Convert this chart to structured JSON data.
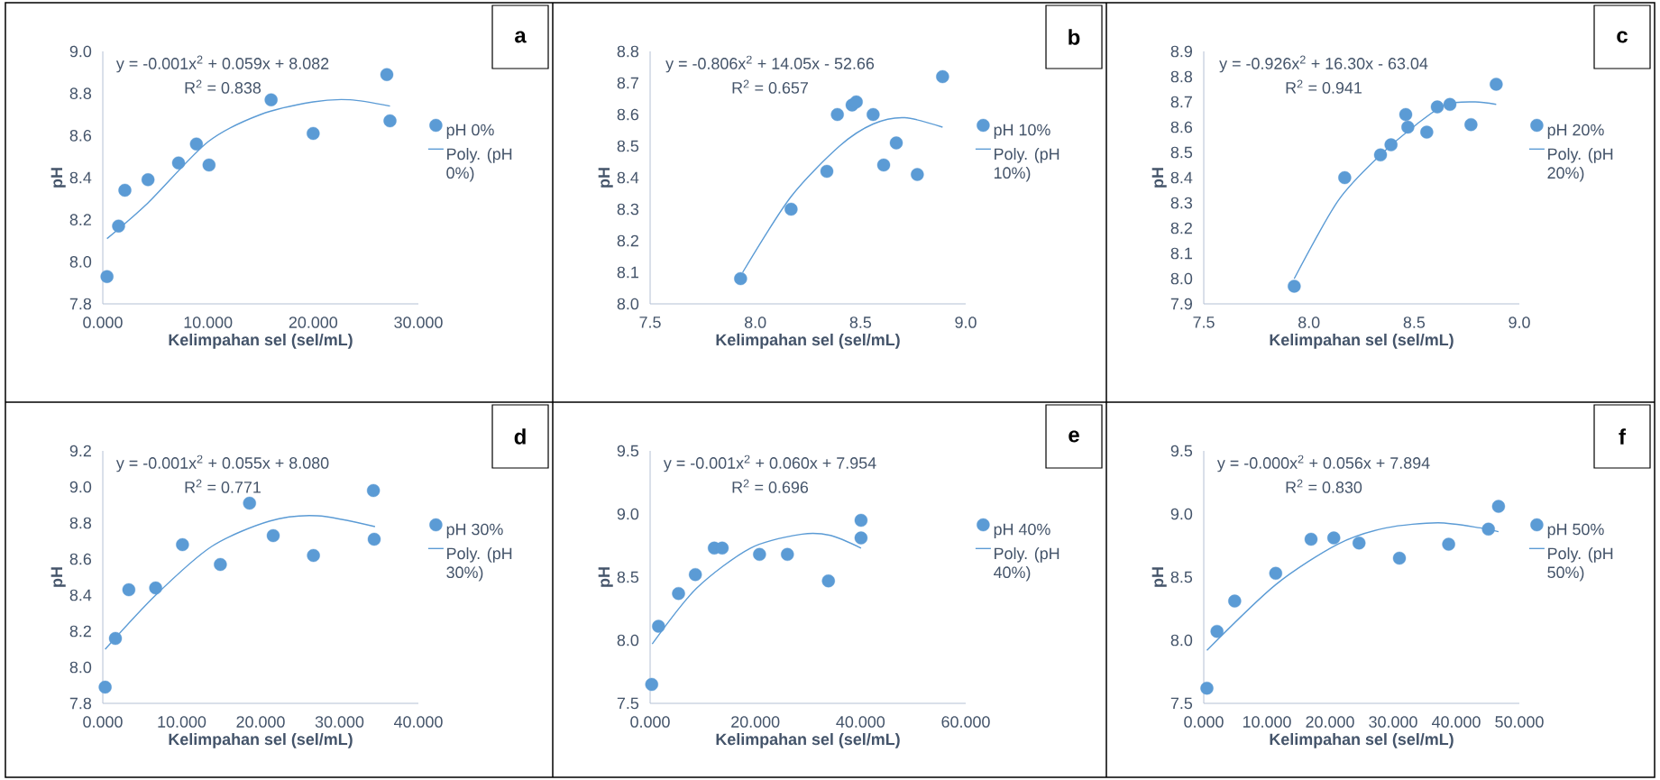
{
  "chart_data": [
    {
      "type": "scatter",
      "xlabel": "Kelimpahan sel (sel/mL)",
      "ylabel": "pH",
      "annotations": [
        "a",
        "y = -0.001x$^{2}$ + 0.059x + 8.082",
        "R$^{2}$ = 0.838"
      ],
      "xlim": [
        0,
        30
      ],
      "ylim": [
        7.8,
        9.0
      ],
      "xticks": [
        {
          "value": 0,
          "label": "0.000"
        },
        {
          "value": 10,
          "label": "10.000"
        },
        {
          "value": 20,
          "label": "20.000"
        },
        {
          "value": 30,
          "label": "30.000"
        }
      ],
      "yticks": [
        {
          "value": 7.8,
          "label": "7.8"
        },
        {
          "value": 8.0,
          "label": "8.0"
        },
        {
          "value": 8.2,
          "label": "8.2"
        },
        {
          "value": 8.4,
          "label": "8.4"
        },
        {
          "value": 8.6,
          "label": "8.6"
        },
        {
          "value": 8.8,
          "label": "8.8"
        },
        {
          "value": 9.0,
          "label": "9.0"
        }
      ],
      "legend": "right",
      "marker": "circle",
      "series": [
        {
          "name": "pH 0%",
          "color": "#5b9bd5",
          "x": [
            0.4,
            1.5,
            2.1,
            4.3,
            7.2,
            8.9,
            10.1,
            16.0,
            20.0,
            27.0,
            27.3
          ],
          "values": [
            7.93,
            8.17,
            8.34,
            8.39,
            8.47,
            8.56,
            8.46,
            8.77,
            8.61,
            8.89,
            8.67
          ]
        },
        {
          "name": "Poly. (pH 0%)",
          "type": "line",
          "marker": "none",
          "line_style": "solid",
          "color": "#5b9bd5",
          "x": [
            0.4,
            4.3,
            10,
            15,
            20,
            23.5,
            27.3
          ],
          "values": [
            8.11,
            8.28,
            8.57,
            8.7,
            8.76,
            8.77,
            8.74
          ]
        }
      ]
    },
    {
      "type": "scatter",
      "xlabel": "Kelimpahan sel (sel/mL)",
      "ylabel": "pH",
      "annotations": [
        "b",
        "y = -0.806x$^{2}$ + 14.05x - 52.66",
        "R$^{2}$ = 0.657"
      ],
      "xlim": [
        7.5,
        9.0
      ],
      "ylim": [
        8.0,
        8.8
      ],
      "xticks": [
        {
          "value": 7.5,
          "label": "7.5"
        },
        {
          "value": 8.0,
          "label": "8.0"
        },
        {
          "value": 8.5,
          "label": "8.5"
        },
        {
          "value": 9.0,
          "label": "9.0"
        }
      ],
      "yticks": [
        {
          "value": 8.0,
          "label": "8.0"
        },
        {
          "value": 8.1,
          "label": "8.1"
        },
        {
          "value": 8.2,
          "label": "8.2"
        },
        {
          "value": 8.3,
          "label": "8.3"
        },
        {
          "value": 8.4,
          "label": "8.4"
        },
        {
          "value": 8.5,
          "label": "8.5"
        },
        {
          "value": 8.6,
          "label": "8.6"
        },
        {
          "value": 8.7,
          "label": "8.7"
        },
        {
          "value": 8.8,
          "label": "8.8"
        }
      ],
      "legend": "right",
      "marker": "circle",
      "series": [
        {
          "name": "pH 10%",
          "color": "#5b9bd5",
          "x": [
            7.93,
            8.17,
            8.34,
            8.39,
            8.46,
            8.48,
            8.56,
            8.61,
            8.67,
            8.77,
            8.89
          ],
          "values": [
            8.08,
            8.3,
            8.42,
            8.6,
            8.63,
            8.64,
            8.6,
            8.44,
            8.51,
            8.41,
            8.72
          ]
        },
        {
          "name": "Poly. (pH 10%)",
          "type": "line",
          "marker": "none",
          "line_style": "solid",
          "color": "#5b9bd5",
          "x": [
            7.94,
            8.17,
            8.4,
            8.56,
            8.71,
            8.89
          ],
          "values": [
            8.1,
            8.34,
            8.5,
            8.57,
            8.59,
            8.56
          ]
        }
      ]
    },
    {
      "type": "scatter",
      "xlabel": "Kelimpahan sel (sel/mL)",
      "ylabel": "pH",
      "annotations": [
        "c",
        "y = -0.926x$^{2}$ + 16.30x - 63.04",
        "R$^{2}$ = 0.941"
      ],
      "xlim": [
        7.5,
        9.0
      ],
      "ylim": [
        7.9,
        8.9
      ],
      "xticks": [
        {
          "value": 7.5,
          "label": "7.5"
        },
        {
          "value": 8.0,
          "label": "8.0"
        },
        {
          "value": 8.5,
          "label": "8.5"
        },
        {
          "value": 9.0,
          "label": "9.0"
        }
      ],
      "yticks": [
        {
          "value": 7.9,
          "label": "7.9"
        },
        {
          "value": 8.0,
          "label": "8.0"
        },
        {
          "value": 8.1,
          "label": "8.1"
        },
        {
          "value": 8.2,
          "label": "8.2"
        },
        {
          "value": 8.3,
          "label": "8.3"
        },
        {
          "value": 8.4,
          "label": "8.4"
        },
        {
          "value": 8.5,
          "label": "8.5"
        },
        {
          "value": 8.6,
          "label": "8.6"
        },
        {
          "value": 8.7,
          "label": "8.7"
        },
        {
          "value": 8.8,
          "label": "8.8"
        },
        {
          "value": 8.9,
          "label": "8.9"
        }
      ],
      "legend": "right",
      "marker": "circle",
      "series": [
        {
          "name": "pH 20%",
          "color": "#5b9bd5",
          "x": [
            7.93,
            8.17,
            8.34,
            8.39,
            8.46,
            8.47,
            8.56,
            8.61,
            8.67,
            8.77,
            8.89
          ],
          "values": [
            7.97,
            8.4,
            8.49,
            8.53,
            8.65,
            8.6,
            8.58,
            8.68,
            8.69,
            8.61,
            8.77
          ]
        },
        {
          "name": "Poly. (pH 20%)",
          "type": "line",
          "marker": "none",
          "line_style": "solid",
          "color": "#5b9bd5",
          "x": [
            7.93,
            8.14,
            8.34,
            8.51,
            8.65,
            8.79,
            8.89
          ],
          "values": [
            8.0,
            8.31,
            8.49,
            8.61,
            8.69,
            8.7,
            8.69
          ]
        }
      ]
    },
    {
      "type": "scatter",
      "xlabel": "Kelimpahan sel (sel/mL)",
      "ylabel": "pH",
      "annotations": [
        "d",
        "y = -0.001x$^{2}$ + 0.055x + 8.080",
        "R$^{2}$ = 0.771"
      ],
      "xlim": [
        0,
        40
      ],
      "ylim": [
        7.8,
        9.2
      ],
      "xticks": [
        {
          "value": 0,
          "label": "0.000"
        },
        {
          "value": 10,
          "label": "10.000"
        },
        {
          "value": 20,
          "label": "20.000"
        },
        {
          "value": 30,
          "label": "30.000"
        },
        {
          "value": 40,
          "label": "40.000"
        }
      ],
      "yticks": [
        {
          "value": 7.8,
          "label": "7.8"
        },
        {
          "value": 8.0,
          "label": "8.0"
        },
        {
          "value": 8.2,
          "label": "8.2"
        },
        {
          "value": 8.4,
          "label": "8.4"
        },
        {
          "value": 8.6,
          "label": "8.6"
        },
        {
          "value": 8.8,
          "label": "8.8"
        },
        {
          "value": 9.0,
          "label": "9.0"
        },
        {
          "value": 9.2,
          "label": "9.2"
        }
      ],
      "legend": "right",
      "marker": "circle",
      "series": [
        {
          "name": "pH 30%",
          "color": "#5b9bd5",
          "x": [
            0.3,
            1.6,
            3.3,
            6.7,
            10.1,
            14.9,
            18.6,
            21.6,
            26.7,
            34.3,
            34.4
          ],
          "values": [
            7.89,
            8.16,
            8.43,
            8.44,
            8.68,
            8.57,
            8.91,
            8.73,
            8.62,
            8.98,
            8.71
          ]
        },
        {
          "name": "Poly. (pH 30%)",
          "type": "line",
          "marker": "none",
          "line_style": "solid",
          "color": "#5b9bd5",
          "x": [
            0.3,
            6.7,
            13.8,
            21.1,
            27.2,
            34.5
          ],
          "values": [
            8.1,
            8.4,
            8.67,
            8.81,
            8.84,
            8.78
          ]
        }
      ]
    },
    {
      "type": "scatter",
      "xlabel": "Kelimpahan sel (sel/mL)",
      "ylabel": "pH",
      "annotations": [
        "e",
        "y = -0.001x$^{2}$ + 0.060x + 7.954",
        "R$^{2}$ = 0.696"
      ],
      "xlim": [
        0,
        60
      ],
      "ylim": [
        7.5,
        9.5
      ],
      "xticks": [
        {
          "value": 0,
          "label": "0.000"
        },
        {
          "value": 20,
          "label": "20.000"
        },
        {
          "value": 40,
          "label": "40.000"
        },
        {
          "value": 60,
          "label": "60.000"
        }
      ],
      "yticks": [
        {
          "value": 7.5,
          "label": "7.5"
        },
        {
          "value": 8.0,
          "label": "8.0"
        },
        {
          "value": 8.5,
          "label": "8.5"
        },
        {
          "value": 9.0,
          "label": "9.0"
        },
        {
          "value": 9.5,
          "label": "9.5"
        }
      ],
      "legend": "right",
      "marker": "circle",
      "series": [
        {
          "name": "pH 40%",
          "color": "#5b9bd5",
          "x": [
            0.3,
            1.6,
            5.4,
            8.6,
            12.2,
            13.7,
            20.8,
            26.1,
            33.9,
            40.1,
            40.1
          ],
          "values": [
            7.65,
            8.11,
            8.37,
            8.52,
            8.73,
            8.73,
            8.68,
            8.68,
            8.47,
            8.95,
            8.81
          ]
        },
        {
          "name": "Poly. (pH 40%)",
          "type": "line",
          "marker": "none",
          "line_style": "solid",
          "color": "#5b9bd5",
          "x": [
            0.4,
            8.8,
            19.1,
            28.9,
            34.3,
            40.1
          ],
          "values": [
            7.97,
            8.41,
            8.73,
            8.84,
            8.83,
            8.73
          ]
        }
      ]
    },
    {
      "type": "scatter",
      "xlabel": "Kelimpahan sel (sel/mL)",
      "ylabel": "pH",
      "annotations": [
        "f",
        "y = -0.000x$^{2}$ + 0.056x + 7.894",
        "R$^{2}$ = 0.830"
      ],
      "xlim": [
        0,
        50
      ],
      "ylim": [
        7.5,
        9.5
      ],
      "xticks": [
        {
          "value": 0,
          "label": "0.000"
        },
        {
          "value": 10,
          "label": "10.000"
        },
        {
          "value": 20,
          "label": "20.000"
        },
        {
          "value": 30,
          "label": "30.000"
        },
        {
          "value": 40,
          "label": "40.000"
        },
        {
          "value": 50,
          "label": "50.000"
        }
      ],
      "yticks": [
        {
          "value": 7.5,
          "label": "7.5"
        },
        {
          "value": 8.0,
          "label": "8.0"
        },
        {
          "value": 8.5,
          "label": "8.5"
        },
        {
          "value": 9.0,
          "label": "9.0"
        },
        {
          "value": 9.5,
          "label": "9.5"
        }
      ],
      "legend": "right",
      "marker": "circle",
      "series": [
        {
          "name": "pH 50%",
          "color": "#5b9bd5",
          "x": [
            0.5,
            2.1,
            4.9,
            11.4,
            17.0,
            20.6,
            24.6,
            31.0,
            38.8,
            45.1,
            46.7
          ],
          "values": [
            7.62,
            8.07,
            8.31,
            8.53,
            8.8,
            8.81,
            8.77,
            8.65,
            8.76,
            8.88,
            9.06
          ]
        },
        {
          "name": "Poly. (pH 50%)",
          "type": "line",
          "marker": "none",
          "line_style": "solid",
          "color": "#5b9bd5",
          "x": [
            0.5,
            11.4,
            21.2,
            28.9,
            37.1,
            43.8,
            46.7
          ],
          "values": [
            7.92,
            8.44,
            8.76,
            8.89,
            8.93,
            8.89,
            8.86
          ]
        }
      ]
    }
  ]
}
